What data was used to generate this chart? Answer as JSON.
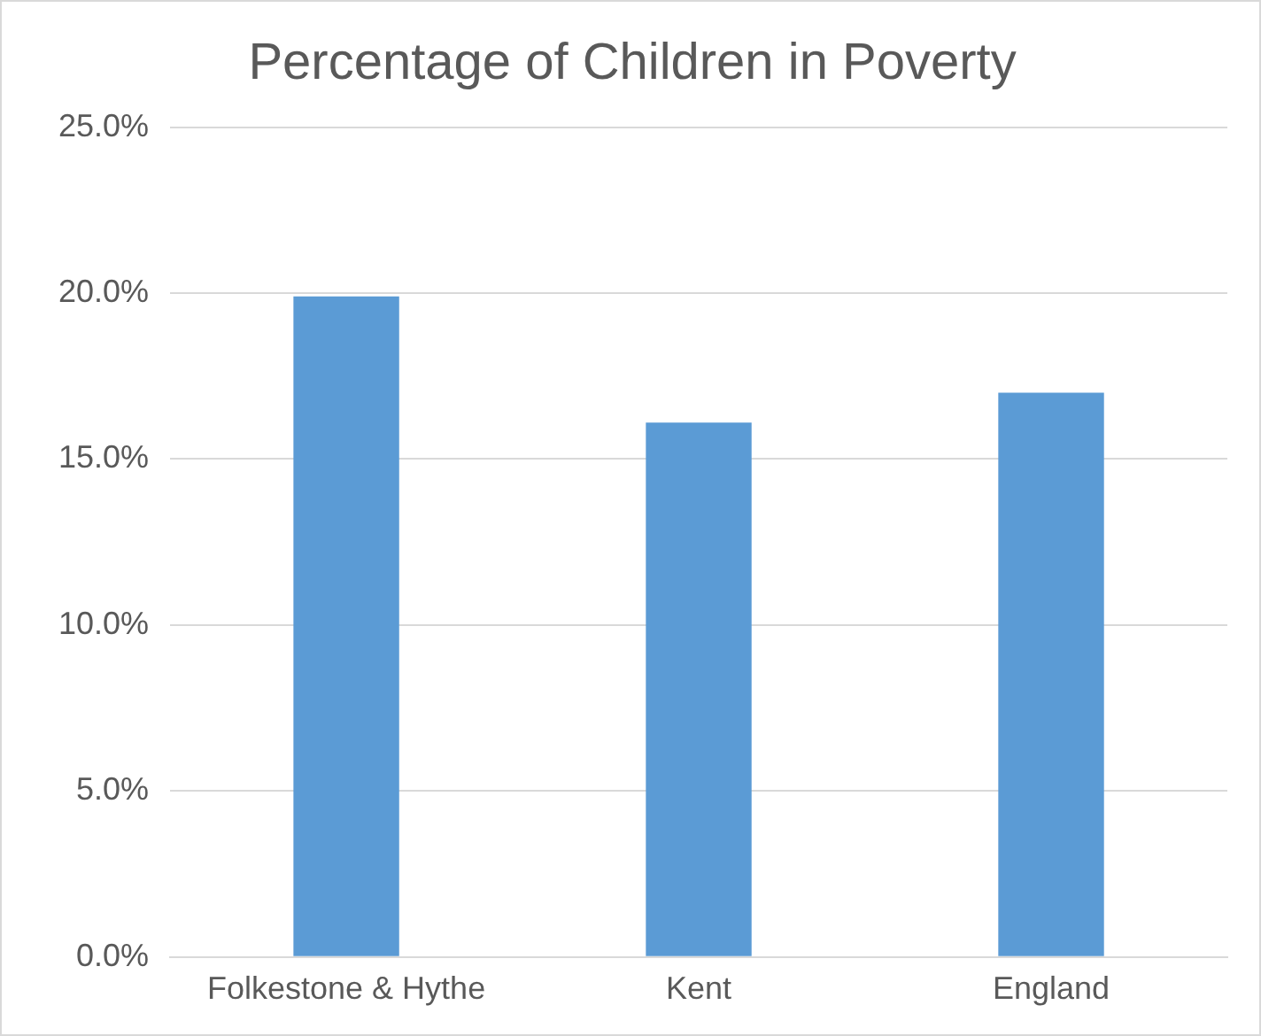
{
  "chart_data": {
    "type": "bar",
    "title": "Percentage of Children in Poverty",
    "categories": [
      "Folkestone & Hythe",
      "Kent",
      "England"
    ],
    "values": [
      19.9,
      16.1,
      17.0
    ],
    "color": "#5b9bd5",
    "ylim": [
      0,
      25
    ],
    "yticks": [
      {
        "value": 0,
        "label": "0.0%"
      },
      {
        "value": 5,
        "label": "5.0%"
      },
      {
        "value": 10,
        "label": "10.0%"
      },
      {
        "value": 15,
        "label": "15.0%"
      },
      {
        "value": 20,
        "label": "20.0%"
      },
      {
        "value": 25,
        "label": "25.0%"
      }
    ],
    "grid": "y"
  }
}
